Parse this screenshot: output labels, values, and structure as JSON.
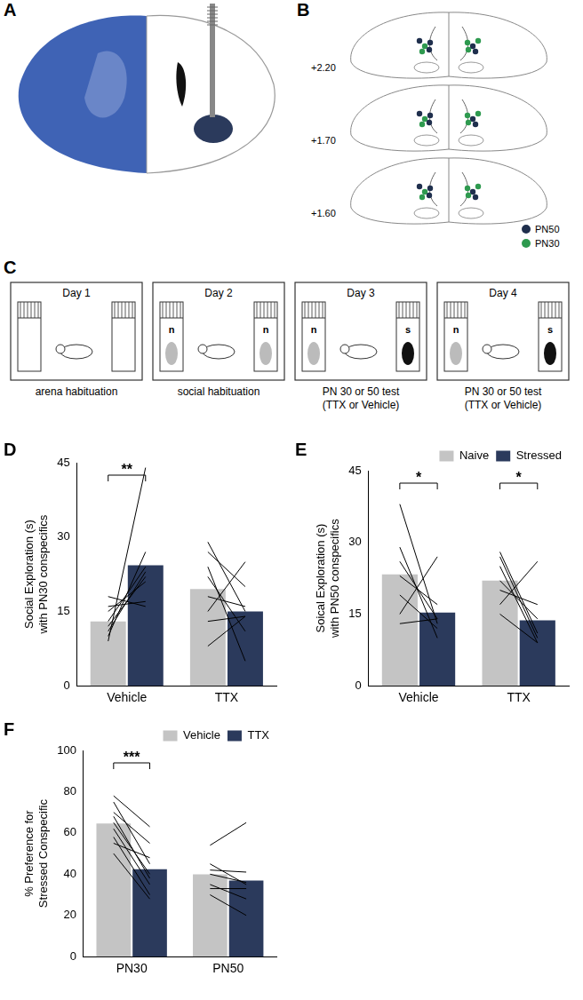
{
  "figure": {
    "panel_a": {
      "letter": "A"
    },
    "panel_b": {
      "letter": "B",
      "sections": [
        "+2.20",
        "+1.70",
        "+1.60"
      ],
      "legend": [
        {
          "name": "PN50",
          "color": "#1f2f4d"
        },
        {
          "name": "PN30",
          "color": "#2e9a4f"
        }
      ]
    },
    "panel_c": {
      "letter": "C",
      "days": [
        {
          "title": "Day 1",
          "caption": [
            "arena habituation"
          ],
          "left": null,
          "right": null
        },
        {
          "title": "Day 2",
          "caption": [
            "social habituation"
          ],
          "left": "n",
          "right": "n"
        },
        {
          "title": "Day 3",
          "caption": [
            "PN 30 or 50 test",
            "(TTX or Vehicle)"
          ],
          "left": "n",
          "right": "s"
        },
        {
          "title": "Day 4",
          "caption": [
            "PN 30 or 50 test",
            "(TTX or Vehicle)"
          ],
          "left": "n",
          "right": "s"
        }
      ]
    }
  },
  "chart_data": [
    {
      "type": "bar",
      "panel": "D",
      "y_label": [
        "Social Exploration (s)",
        "with PN30 conspecifics"
      ],
      "categories": [
        "Vehicle",
        "TTX"
      ],
      "series": [
        {
          "color": "#c4c4c4",
          "values": [
            13,
            19.5
          ],
          "individual": [
            [
              9,
              10,
              11,
              12,
              13,
              15,
              16,
              18
            ],
            [
              29,
              27,
              24,
              22,
              18,
              15,
              13,
              8
            ]
          ]
        },
        {
          "color": "#2b3a5c",
          "values": [
            24.3,
            15
          ],
          "individual": [
            [
              44,
              27,
              23,
              22,
              24,
              21,
              17,
              16
            ],
            [
              15,
              20,
              5,
              11,
              16,
              25,
              14,
              14
            ]
          ]
        }
      ],
      "ylim": [
        0,
        45
      ],
      "yticks": [
        0,
        15,
        30,
        45
      ],
      "grid": false,
      "annotations": [
        {
          "category": "Vehicle",
          "label": "**"
        }
      ]
    },
    {
      "type": "bar",
      "panel": "E",
      "y_label": [
        "Soical Exploration (s)",
        "with PN50 conspecifics"
      ],
      "categories": [
        "Vehicle",
        "TTX"
      ],
      "series": [
        {
          "name": "Naive",
          "color": "#c4c4c4",
          "values": [
            23.3,
            22
          ],
          "individual": [
            [
              38,
              29,
              26,
              23,
              19,
              15,
              13
            ],
            [
              28,
              27,
              25,
              22,
              20,
              17,
              15
            ]
          ]
        },
        {
          "name": "Stressed",
          "color": "#2b3a5c",
          "values": [
            15.3,
            13.7
          ],
          "individual": [
            [
              13,
              10,
              14,
              17,
              12,
              27,
              14
            ],
            [
              11,
              10,
              9,
              14,
              17,
              26,
              9
            ]
          ]
        }
      ],
      "ylim": [
        0,
        45
      ],
      "yticks": [
        0,
        15,
        30,
        45
      ],
      "grid": false,
      "legend": "top-right",
      "annotations": [
        {
          "category": "Vehicle",
          "label": "*"
        },
        {
          "category": "TTX",
          "label": "*"
        }
      ]
    },
    {
      "type": "bar",
      "panel": "F",
      "y_label": [
        "% Preference for",
        "Stressed Conspecific"
      ],
      "categories": [
        "PN30",
        "PN50"
      ],
      "series": [
        {
          "name": "Vehicle",
          "color": "#c4c4c4",
          "values": [
            64.6,
            39.9
          ],
          "individual": [
            [
              78,
              75,
              70,
              68,
              65,
              62,
              58,
              55,
              50
            ],
            [
              54,
              45,
              42,
              40,
              35,
              30,
              33
            ]
          ]
        },
        {
          "name": "TTX",
          "color": "#2b3a5c",
          "values": [
            42.4,
            36.9
          ],
          "individual": [
            [
              63,
              45,
              55,
              38,
              40,
              35,
              30,
              48,
              28
            ],
            [
              65,
              35,
              41,
              36,
              28,
              20,
              33
            ]
          ]
        }
      ],
      "ylim": [
        0,
        100
      ],
      "yticks": [
        0,
        20,
        40,
        60,
        80,
        100
      ],
      "grid": false,
      "legend": "top-right",
      "annotations": [
        {
          "category": "PN30",
          "label": "***"
        }
      ]
    }
  ]
}
